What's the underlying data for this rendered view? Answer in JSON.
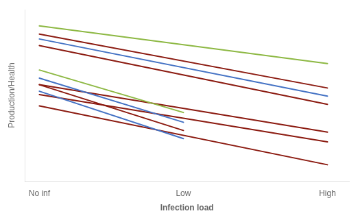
{
  "chart_data": {
    "type": "line",
    "xlabel": "Infection load",
    "ylabel": "Production/Health",
    "xlim": [
      -0.1,
      2.15
    ],
    "xticks": [
      {
        "value": 0,
        "label": "No inf"
      },
      {
        "value": 1,
        "label": "Low"
      },
      {
        "value": 2,
        "label": "High"
      }
    ],
    "ylim": [
      0,
      1.05
    ],
    "tick_labels": "x",
    "grid": false,
    "legend": false,
    "series": [
      {
        "color": "#8db843",
        "x": [
          0,
          2
        ],
        "values": [
          0.95,
          0.72
        ]
      },
      {
        "color": "#8b1a10",
        "x": [
          0,
          2
        ],
        "values": [
          0.9,
          0.57
        ]
      },
      {
        "color": "#4472c4",
        "x": [
          0,
          2
        ],
        "values": [
          0.87,
          0.52
        ]
      },
      {
        "color": "#8b1a10",
        "x": [
          0,
          2
        ],
        "values": [
          0.83,
          0.47
        ]
      },
      {
        "color": "#8db843",
        "x": [
          0,
          1
        ],
        "values": [
          0.68,
          0.42
        ]
      },
      {
        "color": "#4472c4",
        "x": [
          0,
          1
        ],
        "values": [
          0.63,
          0.36
        ]
      },
      {
        "color": "#8b1a10",
        "x": [
          0,
          1
        ],
        "values": [
          0.59,
          0.31
        ]
      },
      {
        "color": "#4472c4",
        "x": [
          0,
          1
        ],
        "values": [
          0.55,
          0.26
        ]
      },
      {
        "color": "#8b1a10",
        "x": [
          0,
          2
        ],
        "values": [
          0.59,
          0.3
        ]
      },
      {
        "color": "#8b1a10",
        "x": [
          0,
          2
        ],
        "values": [
          0.53,
          0.24
        ]
      },
      {
        "color": "#8b1a10",
        "x": [
          0,
          2
        ],
        "values": [
          0.46,
          0.1
        ]
      }
    ]
  }
}
